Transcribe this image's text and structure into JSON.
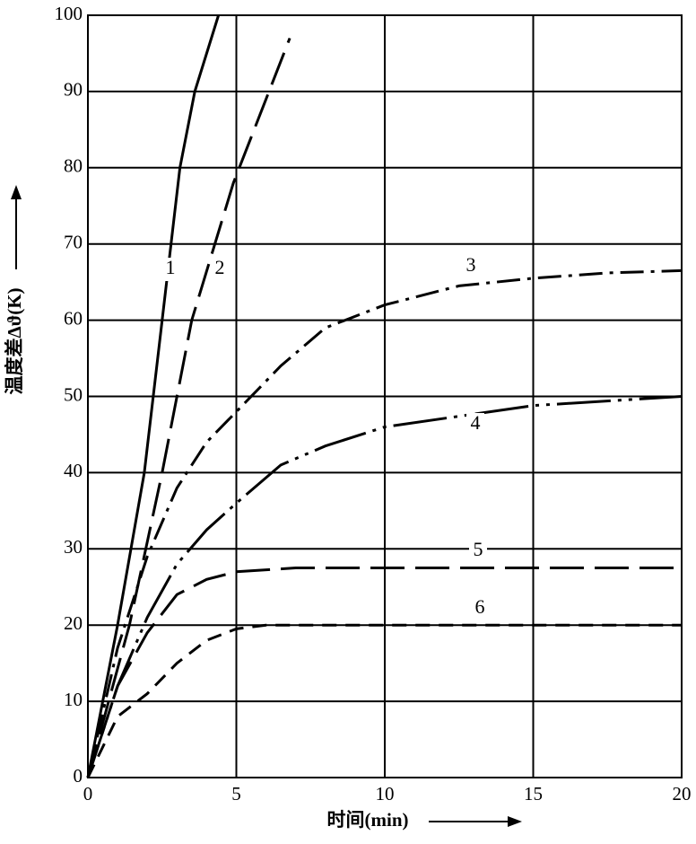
{
  "chart_data": {
    "type": "line",
    "x_label": "时间(min)",
    "y_label": "温度差Δϑ(K)",
    "xlim": [
      0,
      20
    ],
    "ylim": [
      0,
      100
    ],
    "xticks": [
      0,
      5,
      10,
      15,
      20
    ],
    "yticks": [
      0,
      10,
      20,
      30,
      40,
      50,
      60,
      70,
      80,
      90,
      100
    ],
    "grid": true,
    "series": [
      {
        "name": "1",
        "color": "#000000",
        "dash": "solid",
        "x": [
          0,
          1,
          1.9,
          2.5,
          3.1,
          3.6,
          4.4
        ],
        "values": [
          0,
          20,
          40,
          60,
          80,
          90,
          100
        ]
      },
      {
        "name": "2",
        "color": "#000000",
        "dash": "long-dash",
        "x": [
          0,
          1.4,
          2.5,
          3.5,
          4.9,
          5.9,
          6.8
        ],
        "values": [
          0,
          20,
          40,
          60,
          78,
          88,
          97
        ]
      },
      {
        "name": "3",
        "color": "#000000",
        "dash": "dash-dot",
        "x": [
          0,
          1,
          2,
          3,
          4,
          5,
          6.5,
          8,
          10,
          12.5,
          15,
          17.5,
          20
        ],
        "values": [
          0,
          17,
          29,
          38,
          44,
          48,
          54,
          59,
          62,
          64.5,
          65.5,
          66.2,
          66.5
        ]
      },
      {
        "name": "4",
        "color": "#000000",
        "dash": "solid-dot",
        "x": [
          0,
          1,
          2,
          3,
          4,
          5,
          6.5,
          8,
          10,
          15,
          20
        ],
        "values": [
          0,
          12,
          21,
          28,
          32.5,
          36,
          41,
          43.5,
          46,
          48.8,
          50
        ]
      },
      {
        "name": "5",
        "color": "#000000",
        "dash": "long-dash",
        "x": [
          0,
          1,
          2,
          3,
          4,
          5,
          7,
          20
        ],
        "values": [
          0,
          12,
          19,
          24,
          26,
          27,
          27.5,
          27.5
        ]
      },
      {
        "name": "6",
        "color": "#000000",
        "dash": "dashed",
        "x": [
          0,
          1,
          2,
          3,
          4,
          5,
          6,
          20
        ],
        "values": [
          0,
          8,
          11,
          15,
          18,
          19.5,
          20,
          20
        ]
      }
    ]
  }
}
